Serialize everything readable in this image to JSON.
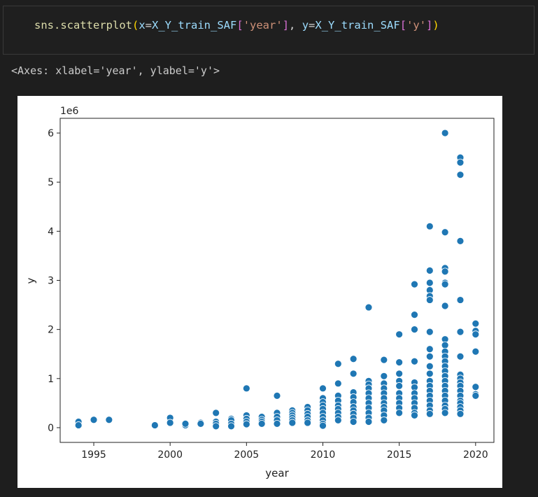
{
  "code_cell": {
    "fn": "sns.scatterplot",
    "arg_x_name": "x",
    "arg_var": "X_Y_train_SAF",
    "col_x": "'year'",
    "arg_y_name": "y",
    "col_y": "'y'"
  },
  "output_text": "<Axes: xlabel='year', ylabel='y'>",
  "colors": {
    "point": "#1f77b4",
    "point_edge": "#ffffff",
    "background": "#1e1e1e"
  },
  "chart_data": {
    "type": "scatter",
    "xlabel": "year",
    "ylabel": "y",
    "offset_label": "1e6",
    "xlim": [
      1992.8,
      2021.2
    ],
    "ylim": [
      -0.3,
      6.3
    ],
    "xticks": [
      1995,
      2000,
      2005,
      2010,
      2015,
      2020
    ],
    "yticks": [
      0,
      1,
      2,
      3,
      4,
      5,
      6
    ],
    "y_unit_multiplier": 1000000,
    "grid": false,
    "points": [
      [
        1994,
        0.12
      ],
      [
        1994,
        0.05
      ],
      [
        1995,
        0.16
      ],
      [
        1996,
        0.16
      ],
      [
        1999,
        0.05
      ],
      [
        2000,
        0.2
      ],
      [
        2000,
        0.1
      ],
      [
        2001,
        0.05
      ],
      [
        2001,
        0.08
      ],
      [
        2002,
        0.1
      ],
      [
        2002,
        0.08
      ],
      [
        2003,
        0.3
      ],
      [
        2003,
        0.12
      ],
      [
        2003,
        0.08
      ],
      [
        2003,
        0.03
      ],
      [
        2004,
        0.18
      ],
      [
        2004,
        0.15
      ],
      [
        2004,
        0.08
      ],
      [
        2004,
        0.03
      ],
      [
        2005,
        0.8
      ],
      [
        2005,
        0.25
      ],
      [
        2005,
        0.18
      ],
      [
        2005,
        0.12
      ],
      [
        2005,
        0.07
      ],
      [
        2006,
        0.22
      ],
      [
        2006,
        0.16
      ],
      [
        2006,
        0.12
      ],
      [
        2006,
        0.08
      ],
      [
        2007,
        0.65
      ],
      [
        2007,
        0.3
      ],
      [
        2007,
        0.22
      ],
      [
        2007,
        0.15
      ],
      [
        2007,
        0.08
      ],
      [
        2008,
        0.35
      ],
      [
        2008,
        0.3
      ],
      [
        2008,
        0.25
      ],
      [
        2008,
        0.2
      ],
      [
        2008,
        0.15
      ],
      [
        2008,
        0.1
      ],
      [
        2009,
        0.42
      ],
      [
        2009,
        0.35
      ],
      [
        2009,
        0.28
      ],
      [
        2009,
        0.22
      ],
      [
        2009,
        0.15
      ],
      [
        2009,
        0.1
      ],
      [
        2010,
        0.8
      ],
      [
        2010,
        0.6
      ],
      [
        2010,
        0.52
      ],
      [
        2010,
        0.45
      ],
      [
        2010,
        0.38
      ],
      [
        2010,
        0.3
      ],
      [
        2010,
        0.22
      ],
      [
        2010,
        0.15
      ],
      [
        2010,
        0.08
      ],
      [
        2010,
        0.04
      ],
      [
        2011,
        1.3
      ],
      [
        2011,
        0.9
      ],
      [
        2011,
        0.65
      ],
      [
        2011,
        0.55
      ],
      [
        2011,
        0.45
      ],
      [
        2011,
        0.38
      ],
      [
        2011,
        0.3
      ],
      [
        2011,
        0.22
      ],
      [
        2011,
        0.15
      ],
      [
        2012,
        1.4
      ],
      [
        2012,
        1.1
      ],
      [
        2012,
        0.72
      ],
      [
        2012,
        0.62
      ],
      [
        2012,
        0.52
      ],
      [
        2012,
        0.42
      ],
      [
        2012,
        0.35
      ],
      [
        2012,
        0.28
      ],
      [
        2012,
        0.2
      ],
      [
        2012,
        0.12
      ],
      [
        2013,
        2.45
      ],
      [
        2013,
        0.95
      ],
      [
        2013,
        0.88
      ],
      [
        2013,
        0.8
      ],
      [
        2013,
        0.7
      ],
      [
        2013,
        0.6
      ],
      [
        2013,
        0.5
      ],
      [
        2013,
        0.4
      ],
      [
        2013,
        0.3
      ],
      [
        2013,
        0.2
      ],
      [
        2013,
        0.12
      ],
      [
        2014,
        1.38
      ],
      [
        2014,
        1.05
      ],
      [
        2014,
        0.9
      ],
      [
        2014,
        0.8
      ],
      [
        2014,
        0.7
      ],
      [
        2014,
        0.6
      ],
      [
        2014,
        0.5
      ],
      [
        2014,
        0.42
      ],
      [
        2014,
        0.35
      ],
      [
        2014,
        0.25
      ],
      [
        2014,
        0.15
      ],
      [
        2015,
        1.9
      ],
      [
        2015,
        1.33
      ],
      [
        2015,
        1.1
      ],
      [
        2015,
        0.95
      ],
      [
        2015,
        0.85
      ],
      [
        2015,
        0.7
      ],
      [
        2015,
        0.6
      ],
      [
        2015,
        0.5
      ],
      [
        2015,
        0.4
      ],
      [
        2015,
        0.3
      ],
      [
        2016,
        2.92
      ],
      [
        2016,
        2.3
      ],
      [
        2016,
        2.0
      ],
      [
        2016,
        1.35
      ],
      [
        2016,
        0.92
      ],
      [
        2016,
        0.82
      ],
      [
        2016,
        0.7
      ],
      [
        2016,
        0.6
      ],
      [
        2016,
        0.5
      ],
      [
        2016,
        0.4
      ],
      [
        2016,
        0.3
      ],
      [
        2016,
        0.25
      ],
      [
        2017,
        4.1
      ],
      [
        2017,
        3.2
      ],
      [
        2017,
        2.95
      ],
      [
        2017,
        2.8
      ],
      [
        2017,
        2.68
      ],
      [
        2017,
        2.6
      ],
      [
        2017,
        1.95
      ],
      [
        2017,
        1.6
      ],
      [
        2017,
        1.45
      ],
      [
        2017,
        1.25
      ],
      [
        2017,
        1.1
      ],
      [
        2017,
        0.95
      ],
      [
        2017,
        0.85
      ],
      [
        2017,
        0.75
      ],
      [
        2017,
        0.65
      ],
      [
        2017,
        0.55
      ],
      [
        2017,
        0.45
      ],
      [
        2017,
        0.35
      ],
      [
        2017,
        0.28
      ],
      [
        2018,
        6.0
      ],
      [
        2018,
        3.98
      ],
      [
        2018,
        3.25
      ],
      [
        2018,
        3.18
      ],
      [
        2018,
        2.95
      ],
      [
        2018,
        2.92
      ],
      [
        2018,
        2.48
      ],
      [
        2018,
        1.8
      ],
      [
        2018,
        1.68
      ],
      [
        2018,
        1.55
      ],
      [
        2018,
        1.45
      ],
      [
        2018,
        1.35
      ],
      [
        2018,
        1.25
      ],
      [
        2018,
        1.15
      ],
      [
        2018,
        1.05
      ],
      [
        2018,
        0.95
      ],
      [
        2018,
        0.85
      ],
      [
        2018,
        0.75
      ],
      [
        2018,
        0.65
      ],
      [
        2018,
        0.55
      ],
      [
        2018,
        0.45
      ],
      [
        2018,
        0.38
      ],
      [
        2018,
        0.3
      ],
      [
        2019,
        5.5
      ],
      [
        2019,
        5.4
      ],
      [
        2019,
        5.15
      ],
      [
        2019,
        3.8
      ],
      [
        2019,
        2.6
      ],
      [
        2019,
        1.95
      ],
      [
        2019,
        1.45
      ],
      [
        2019,
        1.08
      ],
      [
        2019,
        1.0
      ],
      [
        2019,
        0.92
      ],
      [
        2019,
        0.85
      ],
      [
        2019,
        0.75
      ],
      [
        2019,
        0.65
      ],
      [
        2019,
        0.55
      ],
      [
        2019,
        0.5
      ],
      [
        2019,
        0.42
      ],
      [
        2019,
        0.35
      ],
      [
        2019,
        0.28
      ],
      [
        2020,
        2.12
      ],
      [
        2020,
        1.97
      ],
      [
        2020,
        1.9
      ],
      [
        2020,
        1.55
      ],
      [
        2020,
        0.83
      ],
      [
        2020,
        0.68
      ],
      [
        2020,
        0.65
      ]
    ]
  }
}
